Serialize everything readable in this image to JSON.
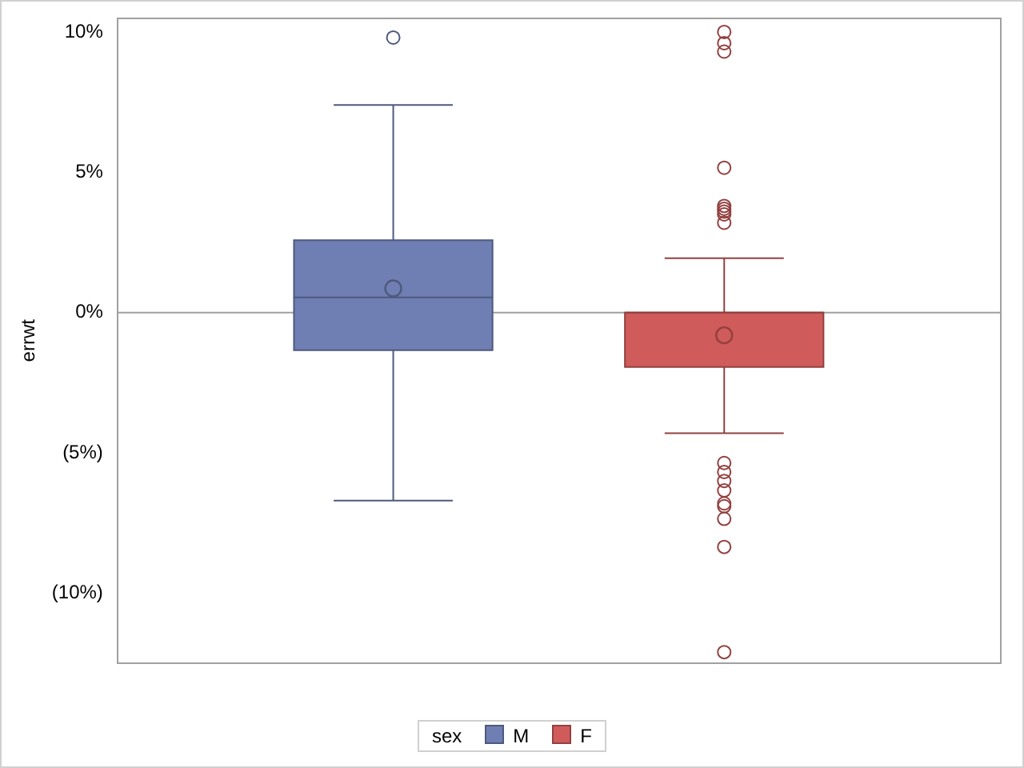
{
  "chart_data": {
    "type": "box",
    "ylabel": "errwt",
    "legend_title": "sex",
    "legend": "bottom",
    "categories": [
      null
    ],
    "ylim": [
      -12.5,
      10.5
    ],
    "yticks": [
      {
        "value": 10,
        "label": "10%"
      },
      {
        "value": 5,
        "label": "5%"
      },
      {
        "value": 0,
        "label": "0%"
      },
      {
        "value": -5,
        "label": "(5%)"
      },
      {
        "value": -10,
        "label": "(10%)"
      }
    ],
    "ref_lines": [
      {
        "axis": "y",
        "value": 0,
        "color": "#a0a0a0"
      }
    ],
    "series": [
      {
        "name": "M",
        "color": "#6f7fb3",
        "boxes": [
          {
            "low": -6.7,
            "q1": -1.34,
            "median": 0.54,
            "q3": 2.58,
            "high": 7.4,
            "mean": 0.86,
            "outliers": [
              9.8
            ]
          }
        ]
      },
      {
        "name": "F",
        "color": "#d05b5b",
        "boxes": [
          {
            "low": -4.3,
            "q1": -1.94,
            "median": 0,
            "q3": 0,
            "high": 1.94,
            "mean": -0.81,
            "outliers": [
              10.0,
              9.6,
              9.3,
              5.16,
              3.8,
              3.7,
              3.6,
              3.5,
              3.2,
              -5.36,
              -5.68,
              -6.0,
              -6.34,
              -6.8,
              -6.9,
              -7.35,
              -8.35,
              -12.1
            ]
          }
        ]
      }
    ]
  }
}
